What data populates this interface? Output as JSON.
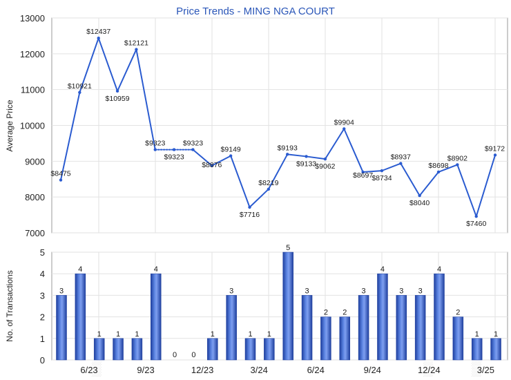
{
  "chart_data": [
    {
      "type": "line",
      "title": "Price Trends - MING NGA COURT",
      "xlabel": "",
      "ylabel": "Average Price",
      "ylim": [
        7000,
        13000
      ],
      "yticks": [
        "7000",
        "8000",
        "9000",
        "10000",
        "11000",
        "12000",
        "13000"
      ],
      "grid": true,
      "series": [
        {
          "color": "#2a5bd0",
          "points": [
            {
              "x": 0,
              "y": 8475,
              "label": "$8475"
            },
            {
              "x": 1,
              "y": 10921,
              "label": "$10921"
            },
            {
              "x": 2,
              "y": 12437,
              "label": "$12437"
            },
            {
              "x": 3,
              "y": 10959,
              "label": "$10959"
            },
            {
              "x": 4,
              "y": 12121,
              "label": "$12121"
            },
            {
              "x": 5,
              "y": 9323,
              "label": "$9323"
            },
            {
              "x": 6,
              "y": 9323,
              "label": "$9323"
            },
            {
              "x": 7,
              "y": 9323,
              "label": "$9323"
            },
            {
              "x": 8,
              "y": 8876,
              "label": "$8876"
            },
            {
              "x": 9,
              "y": 9149,
              "label": "$9149"
            },
            {
              "x": 10,
              "y": 7716,
              "label": "$7716"
            },
            {
              "x": 11,
              "y": 8219,
              "label": "$8219"
            },
            {
              "x": 12,
              "y": 9193,
              "label": "$9193"
            },
            {
              "x": 13,
              "y": 9133,
              "label": "$9133"
            },
            {
              "x": 14,
              "y": 9062,
              "label": "$9062"
            },
            {
              "x": 15,
              "y": 9904,
              "label": "$9904"
            },
            {
              "x": 16,
              "y": 8697,
              "label": "$8697"
            },
            {
              "x": 17,
              "y": 8734,
              "label": "$8734"
            },
            {
              "x": 18,
              "y": 8937,
              "label": "$8937"
            },
            {
              "x": 19,
              "y": 8040,
              "label": "$8040"
            },
            {
              "x": 20,
              "y": 8698,
              "label": "$8698"
            },
            {
              "x": 21,
              "y": 8902,
              "label": "$8902"
            },
            {
              "x": 22,
              "y": 7460,
              "label": "$7460"
            },
            {
              "x": 23,
              "y": 9172,
              "label": "$9172"
            }
          ],
          "dotted_segments": [
            [
              5,
              7
            ]
          ]
        }
      ]
    },
    {
      "type": "bar",
      "title": "",
      "xlabel": "",
      "ylabel": "No. of Transactions",
      "ylim": [
        0,
        5
      ],
      "yticks": [
        "0",
        "1",
        "2",
        "3",
        "4",
        "5"
      ],
      "grid": true,
      "values": [
        3,
        4,
        1,
        1,
        1,
        4,
        0,
        0,
        1,
        3,
        1,
        1,
        5,
        3,
        2,
        2,
        3,
        4,
        3,
        3,
        4,
        2,
        1,
        1
      ],
      "x_tick_labels": [
        {
          "index": 1.5,
          "label": "6/23"
        },
        {
          "index": 4.5,
          "label": "9/23"
        },
        {
          "index": 7.5,
          "label": "12/23"
        },
        {
          "index": 10.5,
          "label": "3/24"
        },
        {
          "index": 13.5,
          "label": "6/24"
        },
        {
          "index": 16.5,
          "label": "9/24"
        },
        {
          "index": 19.5,
          "label": "12/24"
        },
        {
          "index": 22.5,
          "label": "3/25"
        }
      ],
      "bar_color": "#3a62c4"
    }
  ]
}
